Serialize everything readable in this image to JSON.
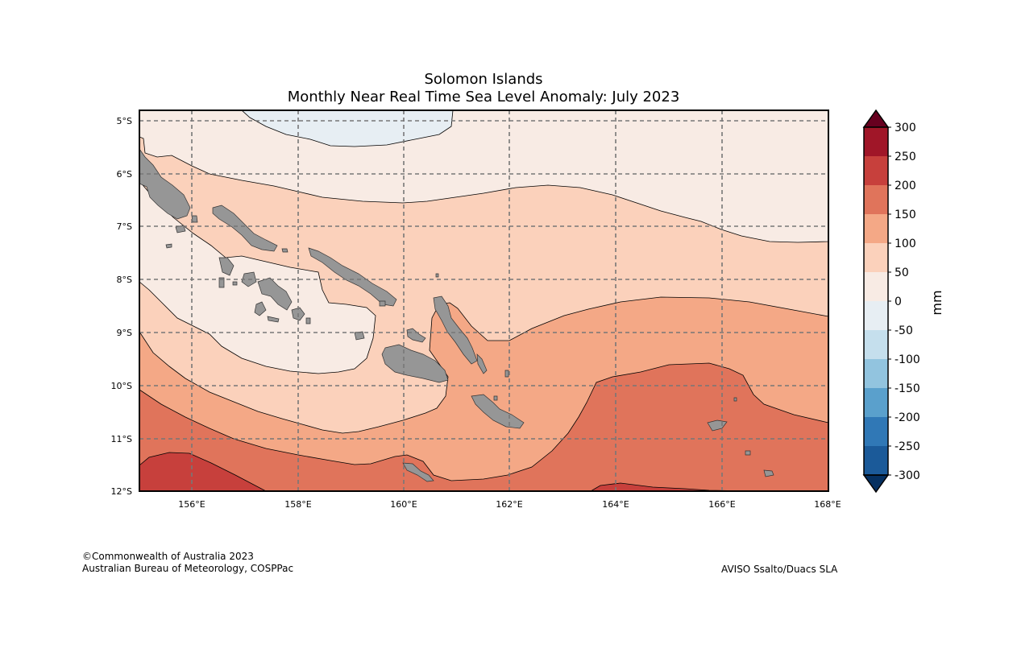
{
  "title": {
    "line1": "Solomon Islands",
    "line2": "Monthly Near Real Time Sea Level Anomaly: July 2023"
  },
  "map": {
    "lon_ticks": [
      "156°E",
      "158°E",
      "160°E",
      "162°E",
      "164°E",
      "166°E",
      "168°E"
    ],
    "lat_ticks": [
      "5°S",
      "6°S",
      "7°S",
      "8°S",
      "9°S",
      "10°S",
      "11°S",
      "12°S"
    ],
    "land_color": "#969696",
    "grid": "dashed"
  },
  "colorbar": {
    "unit": "mm",
    "ticks": [
      "300",
      "250",
      "200",
      "150",
      "100",
      "50",
      "0",
      "-50",
      "-100",
      "-150",
      "-200",
      "-250",
      "-300"
    ],
    "colors": {
      "above_max": "#67001f",
      "250_300": "#a01628",
      "200_250": "#c7403c",
      "150_200": "#e0745b",
      "100_150": "#f4a886",
      "50_100": "#fbd1bb",
      "0_50": "#f8ebe4",
      "-50_0": "#e7eef3",
      "-100_-50": "#c5dfed",
      "-150_-100": "#92c4df",
      "-200_-150": "#5aa0cc",
      "-250_-200": "#3078b6",
      "-300_-250": "#1b5a99",
      "below_min": "#053061"
    }
  },
  "credits": {
    "copyright": "©Commonwealth of Australia 2023",
    "org": "Australian Bureau of Meteorology, COSPPac",
    "source": "AVISO Ssalto/Duacs SLA"
  }
}
